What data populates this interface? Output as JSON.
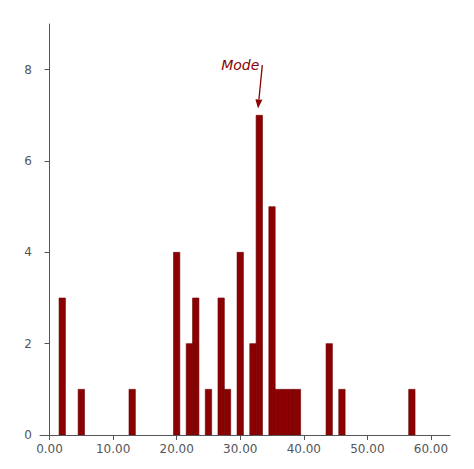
{
  "chart_data": {
    "type": "bar",
    "x": [
      2,
      5,
      13,
      20,
      22,
      23,
      25,
      27,
      28,
      30,
      32,
      33,
      35,
      36,
      37,
      38,
      39,
      44,
      46,
      57
    ],
    "values": [
      3,
      1,
      1,
      4,
      2,
      3,
      1,
      3,
      1,
      4,
      2,
      7,
      5,
      1,
      1,
      1,
      1,
      2,
      1,
      1
    ],
    "color": "#8B0000",
    "xlim": [
      -1.5,
      63
    ],
    "ylim": [
      0,
      9.0
    ],
    "xticks": [
      {
        "value": 0,
        "label": "0.00"
      },
      {
        "value": 10,
        "label": "10.00"
      },
      {
        "value": 20,
        "label": "20.00"
      },
      {
        "value": 30,
        "label": "30.00"
      },
      {
        "value": 40,
        "label": "40.00"
      },
      {
        "value": 50,
        "label": "50.00"
      },
      {
        "value": 60,
        "label": "60.00"
      }
    ],
    "yticks": [
      0,
      2,
      4,
      6,
      8
    ],
    "grid": false,
    "annotations": [
      {
        "text": "Mode",
        "xy": [
          32.8,
          7.15
        ],
        "xytext": [
          27,
          8.1
        ]
      }
    ]
  }
}
